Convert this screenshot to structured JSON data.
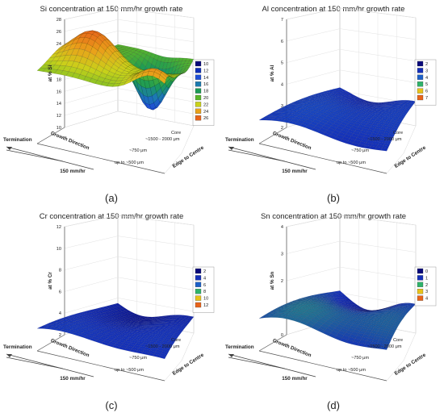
{
  "figure": {
    "panels": [
      {
        "caption": "(a)",
        "title": "Si concentration at 150 mm/hr growth rate",
        "zlabel": "at % Si",
        "zticks": [
          "10",
          "12",
          "14",
          "16",
          "18",
          "20",
          "22",
          "24",
          "26",
          "28"
        ],
        "legend": [
          "10",
          "12",
          "14",
          "16",
          "18",
          "20",
          "22",
          "24",
          "26"
        ],
        "legend_colors": [
          "#08087a",
          "#0f2fb8",
          "#1f4fd6",
          "#1c7bb0",
          "#1b9a55",
          "#5ab52a",
          "#c9d21a",
          "#e9a21a",
          "#e8641a"
        ],
        "growth_label": "Growth Direction",
        "edge_label": "Edge to Centre",
        "termination_label": "Termination",
        "rate_label": "150 mm/hr",
        "depth_ticks": [
          "up to ~500 μm",
          "~750 μm",
          "~1500 - 2000 μm",
          "Core"
        ]
      },
      {
        "caption": "(b)",
        "title": "Al concentration at 150 mm/hr growth rate",
        "zlabel": "at % Al",
        "zticks": [
          "2",
          "3",
          "4",
          "5",
          "6",
          "7"
        ],
        "legend": [
          "2",
          "3",
          "4",
          "5",
          "6",
          "7"
        ],
        "legend_colors": [
          "#08087a",
          "#1530b8",
          "#1c60c8",
          "#2fb36a",
          "#e7c21a",
          "#e8641a"
        ],
        "growth_label": "Growth Direction",
        "edge_label": "Edge to Centre",
        "termination_label": "Termination",
        "rate_label": "150 mm/hr",
        "depth_ticks": [
          "up to ~500 μm",
          "~750 μm",
          "~1500 - 2000 μm",
          "Core"
        ]
      },
      {
        "caption": "(c)",
        "title": "Cr concentration at 150 mm/hr growth rate",
        "zlabel": "at % Cr",
        "zticks": [
          "2",
          "4",
          "6",
          "8",
          "10",
          "12"
        ],
        "legend": [
          "2",
          "4",
          "6",
          "8",
          "10",
          "12"
        ],
        "legend_colors": [
          "#08087a",
          "#1530b8",
          "#1c60c8",
          "#2fb36a",
          "#e7c21a",
          "#e8641a"
        ],
        "growth_label": "Growth Direction",
        "edge_label": "Edge to Centre",
        "termination_label": "Termination",
        "rate_label": "150 mm/hr",
        "depth_ticks": [
          "up to ~500 μm",
          "~750 μm",
          "~1500 - 2000 μm",
          "Core"
        ]
      },
      {
        "caption": "(d)",
        "title": "Sn concentration at 150 mm/hr growth rate",
        "zlabel": "at % Sn",
        "zticks": [
          "0",
          "1",
          "2",
          "3",
          "4"
        ],
        "legend": [
          "0",
          "1",
          "2",
          "3",
          "4"
        ],
        "legend_colors": [
          "#08087a",
          "#1530b8",
          "#2fb36a",
          "#e7c21a",
          "#e8641a"
        ],
        "growth_label": "Growth Direction",
        "edge_label": "Edge to Centre",
        "termination_label": "Termination",
        "rate_label": "150 mm/hr",
        "depth_ticks": [
          "up to ~500 μm",
          "~750 μm",
          "~1500 - 2000 μm",
          "Core"
        ]
      }
    ]
  },
  "chart_data": [
    {
      "type": "surface",
      "title": "Si concentration at 150 mm/hr growth rate",
      "zlabel": "at % Si",
      "x_label": "Growth Direction",
      "y_label": "Edge to Centre",
      "y_categories": [
        "up to ~500 μm",
        "~750 μm",
        "~1500 - 2000 μm",
        "Core"
      ],
      "zlim": [
        10,
        28
      ],
      "z_min": 12,
      "z_max": 28,
      "legend_levels": [
        10,
        12,
        14,
        16,
        18,
        20,
        22,
        24,
        26
      ],
      "grid_lines": true,
      "legend_position": "right"
    },
    {
      "type": "surface",
      "title": "Al concentration at 150 mm/hr growth rate",
      "zlabel": "at % Al",
      "x_label": "Growth Direction",
      "y_label": "Edge to Centre",
      "y_categories": [
        "up to ~500 μm",
        "~750 μm",
        "~1500 - 2000 μm",
        "Core"
      ],
      "zlim": [
        2,
        7
      ],
      "z_min": 2.3,
      "z_max": 3.6,
      "legend_levels": [
        2,
        3,
        4,
        5,
        6,
        7
      ],
      "grid_lines": true,
      "legend_position": "right"
    },
    {
      "type": "surface",
      "title": "Cr concentration at 150 mm/hr growth rate",
      "zlabel": "at % Cr",
      "x_label": "Growth Direction",
      "y_label": "Edge to Centre",
      "y_categories": [
        "up to ~500 μm",
        "~750 μm",
        "~1500 - 2000 μm",
        "Core"
      ],
      "zlim": [
        2,
        12
      ],
      "z_min": 2.6,
      "z_max": 4.6,
      "legend_levels": [
        2,
        4,
        6,
        8,
        10,
        12
      ],
      "grid_lines": true,
      "legend_position": "right"
    },
    {
      "type": "surface",
      "title": "Sn concentration at 150 mm/hr growth rate",
      "zlabel": "at % Sn",
      "x_label": "Growth Direction",
      "y_label": "Edge to Centre",
      "y_categories": [
        "up to ~500 μm",
        "~750 μm",
        "~1500 - 2000 μm",
        "Core"
      ],
      "zlim": [
        0,
        4
      ],
      "z_min": 0.4,
      "z_max": 1.7,
      "legend_levels": [
        0,
        1,
        2,
        3,
        4
      ],
      "grid_lines": true,
      "legend_position": "right"
    }
  ]
}
